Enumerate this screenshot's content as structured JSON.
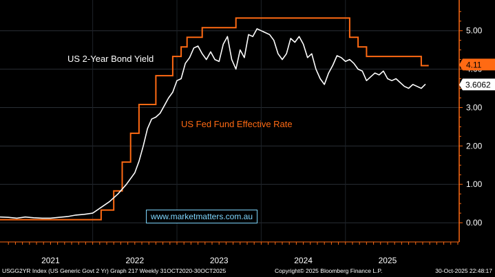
{
  "chart_data": {
    "type": "line",
    "title": "",
    "annotations": {
      "yield_label": "US 2-Year Bond Yield",
      "fed_label": "US Fed Fund Effective Rate",
      "website": "www.marketmatters.com.au"
    },
    "yaxis": {
      "ticks": [
        "5.00",
        "4.00",
        "3.00",
        "2.00",
        "1.00",
        "0.00"
      ],
      "tick_values": [
        5,
        4,
        3,
        2,
        1,
        0
      ],
      "ylim": [
        -0.5,
        5.8
      ],
      "side": "right"
    },
    "xaxis": {
      "year_labels": [
        "2021",
        "2022",
        "2023",
        "2024",
        "2025"
      ],
      "year_centers": [
        2021.0,
        2022.0,
        2023.0,
        2024.0,
        2025.0
      ],
      "year_boundaries": [
        2021.5,
        2022.5,
        2023.5,
        2024.5
      ],
      "xlim": [
        2020.4,
        2025.85
      ]
    },
    "gridlines": [
      5,
      4,
      3,
      2,
      1,
      0
    ],
    "last_values": {
      "yield": "3.6062",
      "fed": "4.11"
    },
    "colors": {
      "background": "#000000",
      "grid": "#2a2f36",
      "yield": "#ffffff",
      "fed": "#ff6a13",
      "fed_badge": "#ff6a13",
      "yield_badge": "#ffffff",
      "link": "#7fd7ff"
    },
    "series": [
      {
        "name": "US 2-Year Bond Yield",
        "color": "#ffffff",
        "x": [
          2020.4,
          2020.5,
          2020.6,
          2020.7,
          2020.8,
          2020.9,
          2021.0,
          2021.1,
          2021.2,
          2021.3,
          2021.4,
          2021.5,
          2021.6,
          2021.7,
          2021.8,
          2021.9,
          2022.0,
          2022.05,
          2022.1,
          2022.15,
          2022.2,
          2022.25,
          2022.3,
          2022.35,
          2022.4,
          2022.45,
          2022.5,
          2022.55,
          2022.6,
          2022.65,
          2022.7,
          2022.75,
          2022.8,
          2022.85,
          2022.9,
          2022.95,
          2023.0,
          2023.05,
          2023.1,
          2023.15,
          2023.2,
          2023.25,
          2023.3,
          2023.35,
          2023.4,
          2023.45,
          2023.5,
          2023.55,
          2023.6,
          2023.65,
          2023.7,
          2023.75,
          2023.8,
          2023.85,
          2023.9,
          2023.95,
          2024.0,
          2024.05,
          2024.1,
          2024.15,
          2024.2,
          2024.25,
          2024.3,
          2024.35,
          2024.4,
          2024.45,
          2024.5,
          2024.55,
          2024.6,
          2024.65,
          2024.7,
          2024.75,
          2024.8,
          2024.85,
          2024.9,
          2024.95,
          2025.0,
          2025.05,
          2025.1,
          2025.15,
          2025.2,
          2025.25,
          2025.3,
          2025.35,
          2025.4,
          2025.45
        ],
        "y": [
          0.15,
          0.14,
          0.12,
          0.15,
          0.13,
          0.12,
          0.12,
          0.14,
          0.16,
          0.2,
          0.22,
          0.25,
          0.4,
          0.55,
          0.75,
          1.0,
          1.3,
          1.6,
          2.0,
          2.45,
          2.7,
          2.75,
          2.85,
          3.05,
          3.25,
          3.4,
          3.7,
          3.75,
          4.15,
          4.3,
          4.55,
          4.6,
          4.4,
          4.25,
          4.45,
          4.25,
          4.2,
          4.65,
          4.85,
          4.25,
          4.0,
          4.5,
          4.3,
          4.9,
          4.85,
          5.05,
          5.0,
          4.95,
          4.9,
          4.75,
          4.4,
          4.25,
          4.4,
          4.8,
          4.7,
          4.85,
          4.65,
          4.3,
          4.4,
          4.0,
          3.75,
          3.6,
          3.9,
          4.1,
          4.35,
          4.3,
          4.2,
          4.25,
          4.15,
          4.0,
          3.95,
          3.7,
          3.8,
          3.9,
          3.85,
          3.95,
          3.75,
          3.7,
          3.75,
          3.65,
          3.55,
          3.5,
          3.6,
          3.55,
          3.5,
          3.61
        ]
      },
      {
        "name": "US Fed Fund Effective Rate",
        "color": "#ff6a13",
        "step": true,
        "x": [
          2020.4,
          2021.5,
          2021.6,
          2021.75,
          2021.85,
          2021.95,
          2022.05,
          2022.15,
          2022.25,
          2022.35,
          2022.45,
          2022.55,
          2022.62,
          2022.72,
          2022.8,
          2023.0,
          2023.2,
          2023.35,
          2023.55,
          2023.75,
          2023.95,
          2024.15,
          2024.35,
          2024.55,
          2024.65,
          2024.75,
          2024.95,
          2025.15,
          2025.3,
          2025.4,
          2025.48
        ],
        "y": [
          0.08,
          0.08,
          0.33,
          0.83,
          1.58,
          2.33,
          3.08,
          3.08,
          3.83,
          3.83,
          4.33,
          4.58,
          4.83,
          4.83,
          5.08,
          5.08,
          5.33,
          5.33,
          5.33,
          5.33,
          5.33,
          5.33,
          5.33,
          4.83,
          4.58,
          4.33,
          4.33,
          4.33,
          4.33,
          4.09,
          4.11
        ]
      }
    ]
  },
  "footer": {
    "left": "USGG2YR Index (US Generic Govt 2 Yr) Graph 217 Weekly 31OCT2020-30OCT2025",
    "center": "Copyright© 2025 Bloomberg Finance L.P.",
    "right": "30-Oct-2025 22:48:17"
  }
}
